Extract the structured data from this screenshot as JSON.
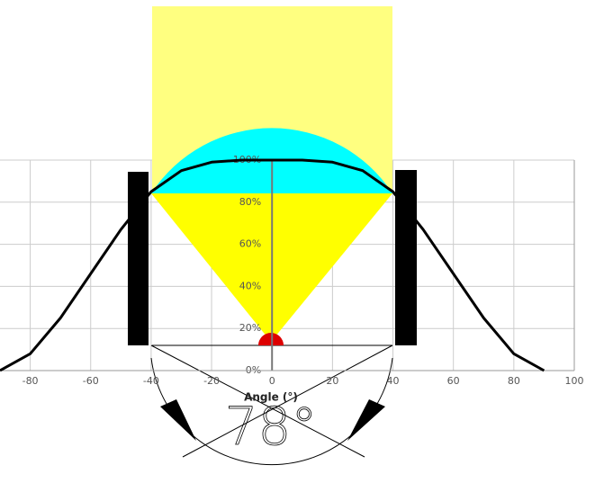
{
  "chart_data": {
    "type": "line",
    "x": [
      -90,
      -80,
      -70,
      -60,
      -50,
      -40,
      -30,
      -20,
      -10,
      0,
      10,
      20,
      30,
      40,
      50,
      60,
      70,
      80,
      90
    ],
    "values": [
      0,
      8,
      25,
      46,
      67,
      85,
      95,
      99,
      100,
      100,
      100,
      99,
      95,
      85,
      67,
      46,
      25,
      8,
      0
    ],
    "color": "#000000",
    "xlim": [
      -90,
      100
    ],
    "xticks": [
      -80,
      -60,
      -40,
      -20,
      0,
      20,
      40,
      60,
      80,
      100
    ],
    "ylim": [
      0,
      100
    ],
    "yticks": [
      {
        "value": 0,
        "label": "0%"
      },
      {
        "value": 20,
        "label": "20%"
      },
      {
        "value": 40,
        "label": "40%"
      },
      {
        "value": 60,
        "label": "60%"
      },
      {
        "value": 80,
        "label": "80%"
      },
      {
        "value": 100,
        "label": "100%"
      }
    ],
    "grid": true,
    "xlabel": "Angle (°)",
    "annotation": "78°"
  }
}
